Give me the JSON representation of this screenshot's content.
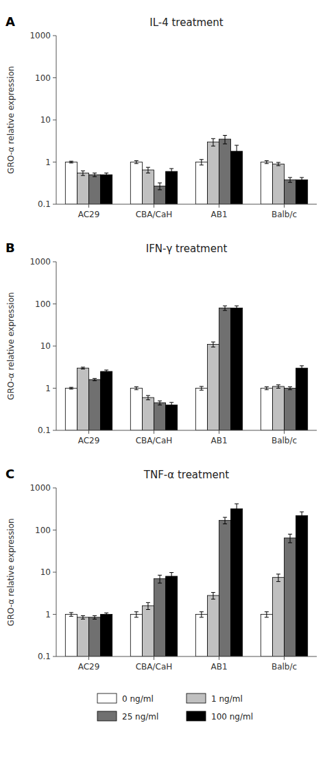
{
  "chart_data": [
    {
      "type": "bar",
      "title": "IL-4 treatment",
      "annotations": [
        "A"
      ],
      "y_label": "GRO-α relative expression",
      "categories": [
        "AC29",
        "CBA/CaH",
        "AB1",
        "Balb/c"
      ],
      "series": [
        {
          "name": "0 ng/ml",
          "color": "white",
          "values": [
            1.0,
            1.0,
            1.0,
            1.0
          ],
          "errors": [
            0.05,
            0.08,
            0.15,
            0.08
          ]
        },
        {
          "name": "1 ng/ml",
          "color": "#c0c0c0",
          "values": [
            0.55,
            0.65,
            3.0,
            0.9
          ],
          "errors": [
            0.07,
            0.1,
            0.6,
            0.08
          ]
        },
        {
          "name": "25 ng/ml",
          "color": "#707070",
          "values": [
            0.5,
            0.27,
            3.5,
            0.38
          ],
          "errors": [
            0.05,
            0.05,
            0.8,
            0.05
          ]
        },
        {
          "name": "100 ng/ml",
          "color": "black",
          "values": [
            0.5,
            0.6,
            1.8,
            0.38
          ],
          "errors": [
            0.05,
            0.1,
            0.7,
            0.05
          ]
        }
      ],
      "ylim": [
        0.1,
        1000
      ],
      "yticks": [
        0.1,
        1,
        10,
        100,
        1000
      ],
      "log": "y"
    },
    {
      "type": "bar",
      "title": "IFN-γ treatment",
      "annotations": [
        "B"
      ],
      "y_label": "GRO-α relative expression",
      "categories": [
        "AC29",
        "CBA/CaH",
        "AB1",
        "Balb/c"
      ],
      "series": [
        {
          "name": "0 ng/ml",
          "color": "white",
          "values": [
            1.0,
            1.0,
            1.0,
            1.0
          ],
          "errors": [
            0.05,
            0.08,
            0.1,
            0.08
          ]
        },
        {
          "name": "1 ng/ml",
          "color": "#c0c0c0",
          "values": [
            3.0,
            0.6,
            11.0,
            1.1
          ],
          "errors": [
            0.15,
            0.07,
            1.5,
            0.1
          ]
        },
        {
          "name": "25 ng/ml",
          "color": "#707070",
          "values": [
            1.6,
            0.45,
            80.0,
            1.0
          ],
          "errors": [
            0.1,
            0.05,
            10.0,
            0.08
          ]
        },
        {
          "name": "100 ng/ml",
          "color": "black",
          "values": [
            2.5,
            0.4,
            80.0,
            3.0
          ],
          "errors": [
            0.2,
            0.06,
            10.0,
            0.4
          ]
        }
      ],
      "ylim": [
        0.1,
        1000
      ],
      "yticks": [
        0.1,
        1,
        10,
        100,
        1000
      ],
      "log": "y"
    },
    {
      "type": "bar",
      "title": "TNF-α treatment",
      "annotations": [
        "C"
      ],
      "y_label": "GRO-α relative expression",
      "categories": [
        "AC29",
        "CBA/CaH",
        "AB1",
        "Balb/c"
      ],
      "series": [
        {
          "name": "0 ng/ml",
          "color": "white",
          "values": [
            1.0,
            1.0,
            1.0,
            1.0
          ],
          "errors": [
            0.1,
            0.15,
            0.15,
            0.15
          ]
        },
        {
          "name": "1 ng/ml",
          "color": "#c0c0c0",
          "values": [
            0.85,
            1.6,
            2.8,
            7.5
          ],
          "errors": [
            0.08,
            0.3,
            0.5,
            1.5
          ]
        },
        {
          "name": "25 ng/ml",
          "color": "#707070",
          "values": [
            0.85,
            7.0,
            170.0,
            65.0
          ],
          "errors": [
            0.08,
            1.5,
            30.0,
            15.0
          ]
        },
        {
          "name": "100 ng/ml",
          "color": "black",
          "values": [
            1.0,
            8.0,
            320.0,
            220.0
          ],
          "errors": [
            0.08,
            1.8,
            100.0,
            50.0
          ]
        }
      ],
      "ylim": [
        0.1,
        1000
      ],
      "yticks": [
        0.1,
        1,
        10,
        100,
        1000
      ],
      "log": "y",
      "legend": "bottom"
    }
  ]
}
